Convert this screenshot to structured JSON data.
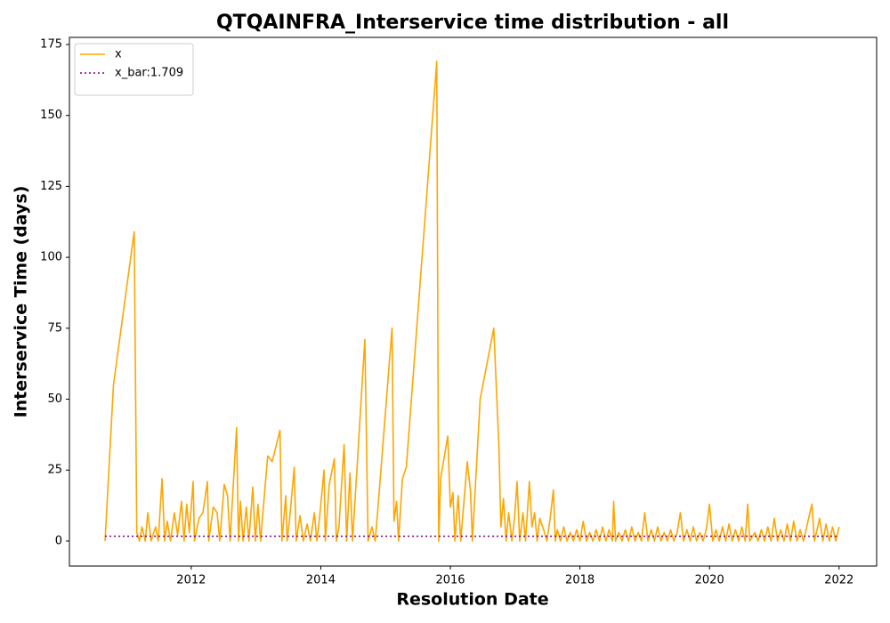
{
  "chart_data": {
    "type": "line",
    "title": "QTQAINFRA_Interservice time distribution - all",
    "xlabel": "Resolution Date",
    "ylabel": "Interservice Time (days)",
    "xlim": [
      2010.12,
      2022.58
    ],
    "xticks": [
      2012,
      2014,
      2016,
      2018,
      2020,
      2022
    ],
    "ylim": [
      -8.8,
      177.5
    ],
    "yticks": [
      0,
      25,
      50,
      75,
      100,
      125,
      150,
      175
    ],
    "legend": "upper left",
    "series": [
      {
        "name": "x",
        "color": "orange",
        "dash": "solid",
        "x": [
          2010.67,
          2010.8,
          2011.12,
          2011.16,
          2011.2,
          2011.24,
          2011.29,
          2011.33,
          2011.38,
          2011.45,
          2011.49,
          2011.55,
          2011.59,
          2011.63,
          2011.68,
          2011.74,
          2011.79,
          2011.85,
          2011.89,
          2011.93,
          2011.97,
          2012.03,
          2012.05,
          2012.12,
          2012.18,
          2012.25,
          2012.27,
          2012.34,
          2012.4,
          2012.44,
          2012.51,
          2012.56,
          2012.6,
          2012.7,
          2012.73,
          2012.76,
          2012.8,
          2012.85,
          2012.89,
          2012.95,
          2012.99,
          2013.03,
          2013.07,
          2013.18,
          2013.25,
          2013.37,
          2013.4,
          2013.46,
          2013.48,
          2013.52,
          2013.59,
          2013.62,
          2013.68,
          2013.73,
          2013.79,
          2013.84,
          2013.9,
          2013.94,
          2013.98,
          2014.05,
          2014.07,
          2014.13,
          2014.21,
          2014.24,
          2014.28,
          2014.36,
          2014.4,
          2014.45,
          2014.49,
          2014.68,
          2014.73,
          2014.79,
          2014.84,
          2014.88,
          2015.1,
          2015.13,
          2015.17,
          2015.2,
          2015.26,
          2015.32,
          2015.79,
          2015.82,
          2015.85,
          2015.96,
          2016.0,
          2016.04,
          2016.07,
          2016.12,
          2016.16,
          2016.26,
          2016.31,
          2016.34,
          2016.46,
          2016.67,
          2016.75,
          2016.78,
          2016.82,
          2016.86,
          2016.9,
          2016.95,
          2016.99,
          2017.03,
          2017.07,
          2017.12,
          2017.16,
          2017.22,
          2017.26,
          2017.3,
          2017.34,
          2017.38,
          2017.44,
          2017.49,
          2017.54,
          2017.59,
          2017.62,
          2017.65,
          2017.7,
          2017.75,
          2017.8,
          2017.85,
          2017.9,
          2017.95,
          2018.0,
          2018.05,
          2018.1,
          2018.15,
          2018.2,
          2018.25,
          2018.3,
          2018.35,
          2018.4,
          2018.45,
          2018.5,
          2018.52,
          2018.55,
          2018.6,
          2018.65,
          2018.7,
          2018.75,
          2018.8,
          2018.85,
          2018.9,
          2018.95,
          2019.0,
          2019.05,
          2019.1,
          2019.15,
          2019.2,
          2019.25,
          2019.3,
          2019.35,
          2019.4,
          2019.45,
          2019.5,
          2019.55,
          2019.6,
          2019.65,
          2019.7,
          2019.75,
          2019.8,
          2019.85,
          2019.9,
          2019.95,
          2020.0,
          2020.05,
          2020.1,
          2020.15,
          2020.2,
          2020.25,
          2020.3,
          2020.35,
          2020.4,
          2020.45,
          2020.5,
          2020.55,
          2020.59,
          2020.62,
          2020.7,
          2020.75,
          2020.8,
          2020.85,
          2020.9,
          2020.95,
          2021.0,
          2021.05,
          2021.1,
          2021.15,
          2021.2,
          2021.25,
          2021.3,
          2021.35,
          2021.4,
          2021.45,
          2021.5,
          2021.55,
          2021.58,
          2021.62,
          2021.7,
          2021.75,
          2021.8,
          2021.85,
          2021.9,
          2021.95,
          2022.0
        ],
        "values": [
          0,
          55,
          109,
          3,
          0,
          5,
          0,
          10,
          0,
          5,
          0,
          22,
          0,
          7,
          0,
          10,
          2,
          14,
          0,
          13,
          3,
          21,
          0,
          8,
          10,
          21,
          0,
          12,
          10,
          0,
          20,
          16,
          0,
          40,
          0,
          14,
          0,
          12,
          0,
          19,
          0,
          13,
          0,
          30,
          28,
          39,
          0,
          16,
          0,
          8,
          26,
          0,
          9,
          0,
          6,
          0,
          10,
          0,
          8,
          25,
          0,
          20,
          29,
          0,
          5,
          34,
          0,
          24,
          0,
          71,
          0,
          5,
          0,
          11,
          75,
          7,
          14,
          0,
          22,
          26,
          169,
          0,
          22,
          37,
          12,
          17,
          0,
          16,
          0,
          28,
          18,
          0,
          50,
          75,
          33,
          5,
          15,
          0,
          10,
          0,
          8,
          21,
          0,
          10,
          0,
          21,
          5,
          10,
          0,
          8,
          4,
          0,
          8,
          18,
          0,
          4,
          0,
          5,
          0,
          3,
          0,
          4,
          0,
          7,
          0,
          3,
          0,
          4,
          0,
          5,
          0,
          4,
          0,
          14,
          0,
          3,
          0,
          4,
          0,
          5,
          0,
          3,
          0,
          10,
          0,
          4,
          0,
          5,
          0,
          3,
          0,
          4,
          0,
          3,
          10,
          0,
          4,
          0,
          5,
          0,
          3,
          0,
          4,
          13,
          0,
          4,
          0,
          5,
          0,
          6,
          0,
          4,
          0,
          5,
          0,
          13,
          0,
          3,
          0,
          4,
          0,
          5,
          0,
          8,
          0,
          4,
          0,
          6,
          0,
          7,
          0,
          4,
          0,
          5,
          10,
          13,
          0,
          8,
          0,
          6,
          0,
          5,
          0,
          5
        ]
      },
      {
        "name": "x_bar:1.709",
        "color": "purple",
        "dash": "dotted",
        "x": [
          2010.67,
          2022.0
        ],
        "values": [
          1.709,
          1.709
        ]
      }
    ]
  }
}
